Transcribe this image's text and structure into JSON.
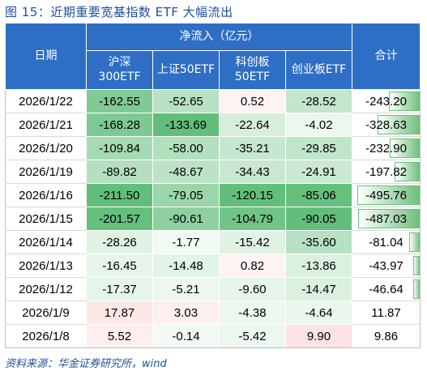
{
  "title": "图 15：近期重要宽基指数 ETF 大幅流出",
  "header": {
    "date": "日期",
    "group": "净流入（亿元）",
    "total": "合计",
    "cols": [
      {
        "l1": "沪深",
        "l2": "300ETF"
      },
      {
        "l1": "上证50ETF",
        "l2": ""
      },
      {
        "l1": "科创板",
        "l2": "50ETF"
      },
      {
        "l1": "创业板ETF",
        "l2": ""
      }
    ]
  },
  "rows": [
    {
      "date": "2026/1/22",
      "v": [
        "-162.55",
        "-52.65",
        "0.52",
        "-28.52"
      ],
      "total": "-243.20"
    },
    {
      "date": "2026/1/21",
      "v": [
        "-168.28",
        "-133.69",
        "-22.64",
        "-4.02"
      ],
      "total": "-328.63"
    },
    {
      "date": "2026/1/20",
      "v": [
        "-109.84",
        "-58.00",
        "-35.21",
        "-29.85"
      ],
      "total": "-232.90"
    },
    {
      "date": "2026/1/19",
      "v": [
        "-89.82",
        "-48.67",
        "-34.43",
        "-24.91"
      ],
      "total": "-197.82"
    },
    {
      "date": "2026/1/16",
      "v": [
        "-211.50",
        "-79.05",
        "-120.15",
        "-85.06"
      ],
      "total": "-495.76"
    },
    {
      "date": "2026/1/15",
      "v": [
        "-201.57",
        "-90.61",
        "-104.79",
        "-90.05"
      ],
      "total": "-487.03"
    },
    {
      "date": "2026/1/14",
      "v": [
        "-28.26",
        "-1.77",
        "-15.42",
        "-35.60"
      ],
      "total": "-81.04"
    },
    {
      "date": "2026/1/13",
      "v": [
        "-16.45",
        "-14.48",
        "0.82",
        "-13.86"
      ],
      "total": "-43.97"
    },
    {
      "date": "2026/1/12",
      "v": [
        "-17.37",
        "-5.21",
        "-9.60",
        "-14.47"
      ],
      "total": "-46.64"
    },
    {
      "date": "2026/1/9",
      "v": [
        "17.87",
        "3.03",
        "-4.38",
        "-4.64"
      ],
      "total": "11.87"
    },
    {
      "date": "2026/1/8",
      "v": [
        "5.52",
        "-0.14",
        "-5.42",
        "9.90"
      ],
      "total": "9.86"
    }
  ],
  "source": "资料来源：华金证券研究所，wind"
}
